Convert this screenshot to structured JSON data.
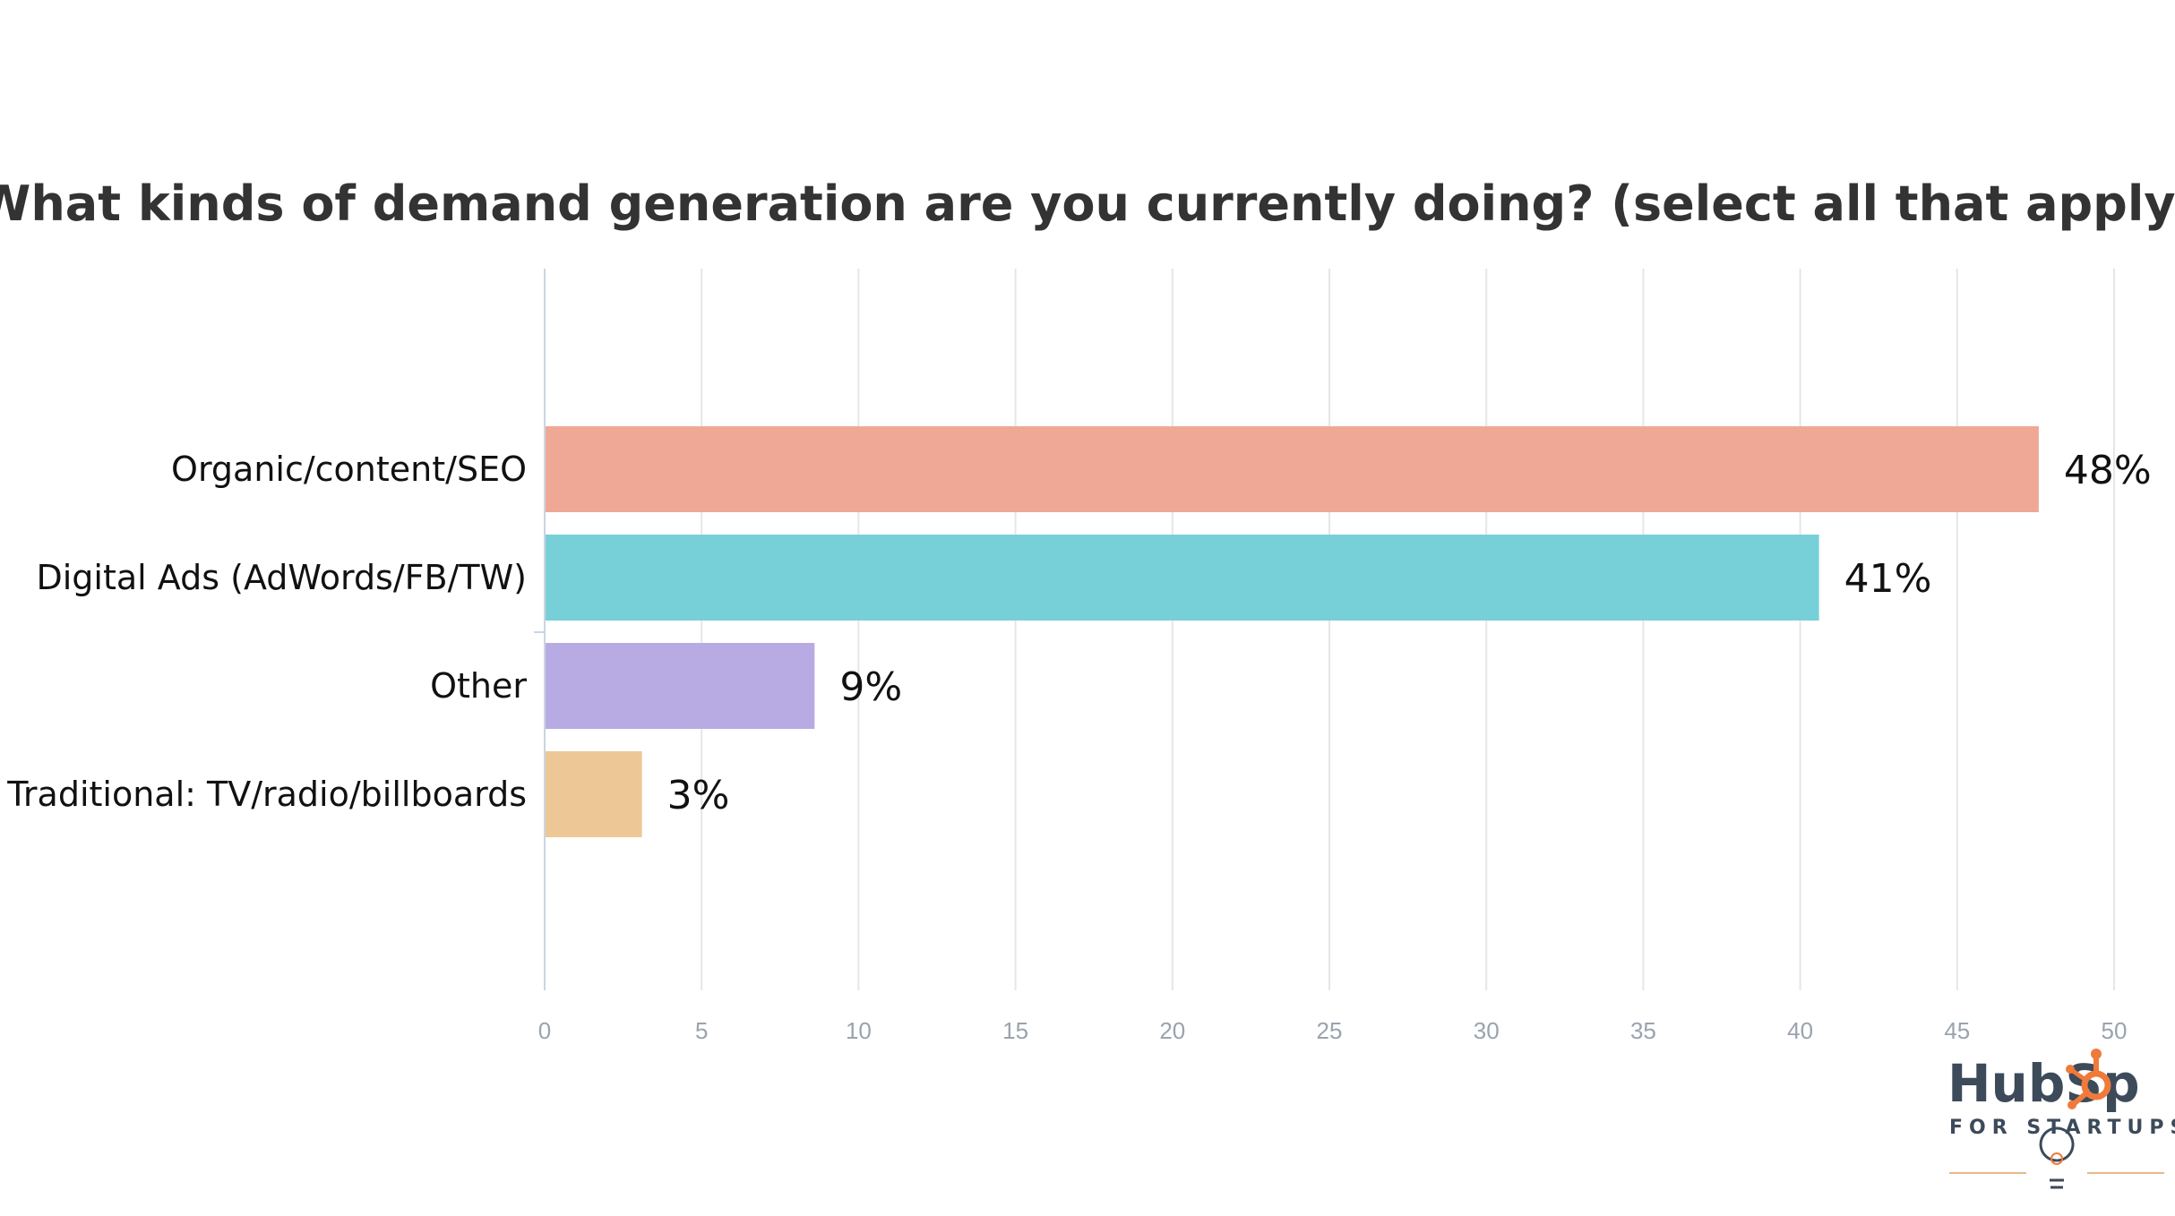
{
  "chart_data": {
    "type": "bar",
    "orientation": "horizontal",
    "title": "What kinds of demand generation are you currently doing? (select all that apply)",
    "categories": [
      "Organic/content/SEO",
      "Digital Ads (AdWords/FB/TW)",
      "Other",
      "Traditional: TV/radio/billboards"
    ],
    "values": [
      47.6,
      40.6,
      8.6,
      3.1
    ],
    "data_labels": [
      "48%",
      "41%",
      "9%",
      "3%"
    ],
    "colors": [
      "#f0a896",
      "#77d0d8",
      "#b8abe3",
      "#edc896"
    ],
    "xlim": [
      0,
      50
    ],
    "x_ticks": [
      "0",
      "5",
      "10",
      "15",
      "20",
      "25",
      "30",
      "35",
      "40",
      "45",
      "50"
    ],
    "x_tick_values": [
      0,
      5,
      10,
      15,
      20,
      25,
      30,
      35,
      40,
      45,
      50
    ],
    "grid": true,
    "legend": false
  },
  "branding": {
    "logo_text_hub": "HubSp",
    "logo_text_ot": "t",
    "logo_subtitle": "FOR STARTUPS",
    "logo_icon": "sprocket-lightbulb-icon",
    "colors": {
      "text": "#3c4a5a",
      "accent": "#f07a3a",
      "rule": "#e8b88a"
    }
  }
}
